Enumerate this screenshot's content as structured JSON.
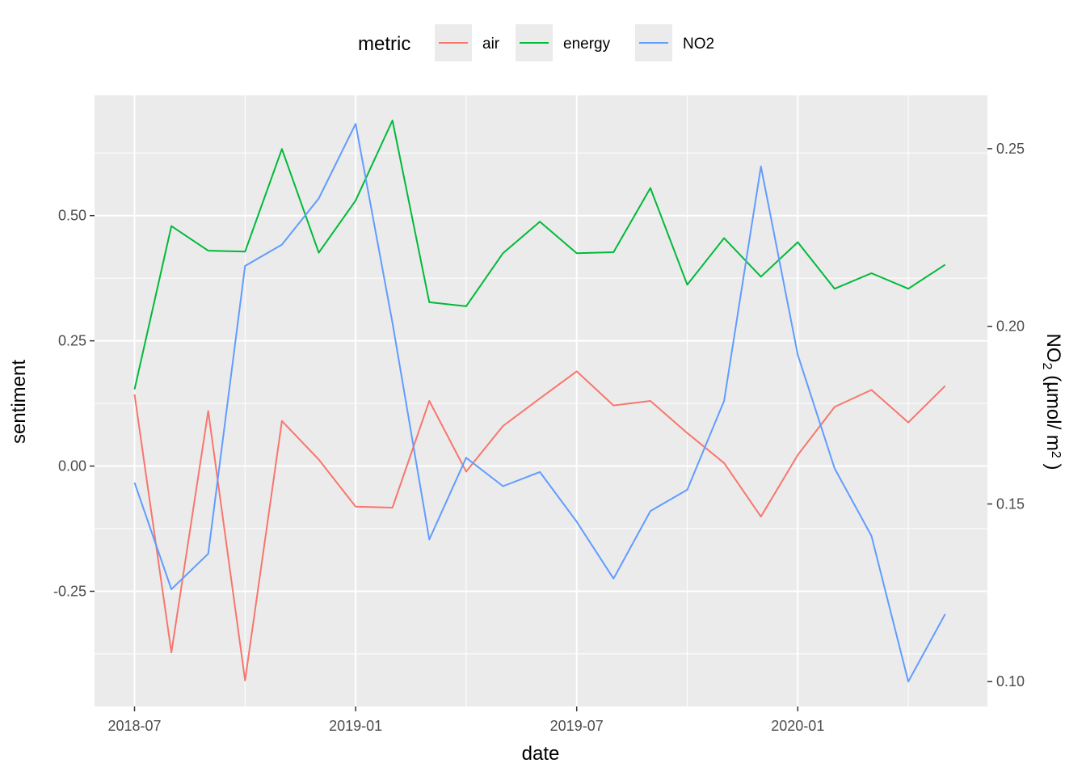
{
  "chart_data": {
    "type": "line",
    "xlabel": "date",
    "ylabel": "sentiment",
    "y2label": "NO2 (µmol/ m2 )",
    "legend": {
      "title": "metric",
      "placement": "top",
      "entries": [
        "air",
        "energy",
        "NO2"
      ]
    },
    "x": [
      "2018-07",
      "2018-08",
      "2018-09",
      "2018-10",
      "2018-11",
      "2018-12",
      "2019-01",
      "2019-02",
      "2019-03",
      "2019-04",
      "2019-05",
      "2019-06",
      "2019-07",
      "2019-08",
      "2019-09",
      "2019-10",
      "2019-11",
      "2019-12",
      "2020-01",
      "2020-02",
      "2020-03",
      "2020-04",
      "2020-05"
    ],
    "x_ticks": [
      "2018-07",
      "2019-01",
      "2019-07",
      "2020-01"
    ],
    "y_ticks": [
      "-0.25",
      "0.00",
      "0.25",
      "0.50"
    ],
    "y_tick_values": [
      -0.25,
      0.0,
      0.25,
      0.5
    ],
    "y_range": [
      -0.48,
      0.74
    ],
    "y2_ticks": [
      "0.10",
      "0.15",
      "0.20",
      "0.25"
    ],
    "y2_tick_values": [
      0.1,
      0.15,
      0.2,
      0.25
    ],
    "y2_range": [
      0.093,
      0.265
    ],
    "grid": true,
    "series": [
      {
        "name": "air",
        "axis": "left",
        "color": "#F8766D",
        "values": [
          0.143,
          -0.372,
          0.11,
          -0.428,
          0.09,
          0.013,
          -0.081,
          -0.083,
          0.13,
          -0.011,
          0.08,
          0.135,
          0.189,
          0.121,
          0.13,
          0.066,
          0.006,
          -0.101,
          0.022,
          0.118,
          0.152,
          0.087,
          0.16
        ]
      },
      {
        "name": "energy",
        "axis": "left",
        "color": "#00BA38",
        "values": [
          0.153,
          0.479,
          0.43,
          0.428,
          0.633,
          0.426,
          0.53,
          0.69,
          0.327,
          0.319,
          0.425,
          0.488,
          0.425,
          0.427,
          0.555,
          0.362,
          0.455,
          0.378,
          0.447,
          0.354,
          0.385,
          0.354,
          0.402
        ]
      },
      {
        "name": "NO2",
        "axis": "right",
        "color": "#619CFF",
        "values": [
          0.156,
          0.126,
          0.136,
          0.217,
          0.223,
          0.236,
          0.257,
          0.201,
          0.14,
          0.163,
          0.155,
          0.159,
          0.145,
          0.129,
          0.148,
          0.154,
          0.179,
          0.245,
          0.192,
          0.16,
          0.141,
          0.1,
          0.119
        ]
      }
    ]
  }
}
